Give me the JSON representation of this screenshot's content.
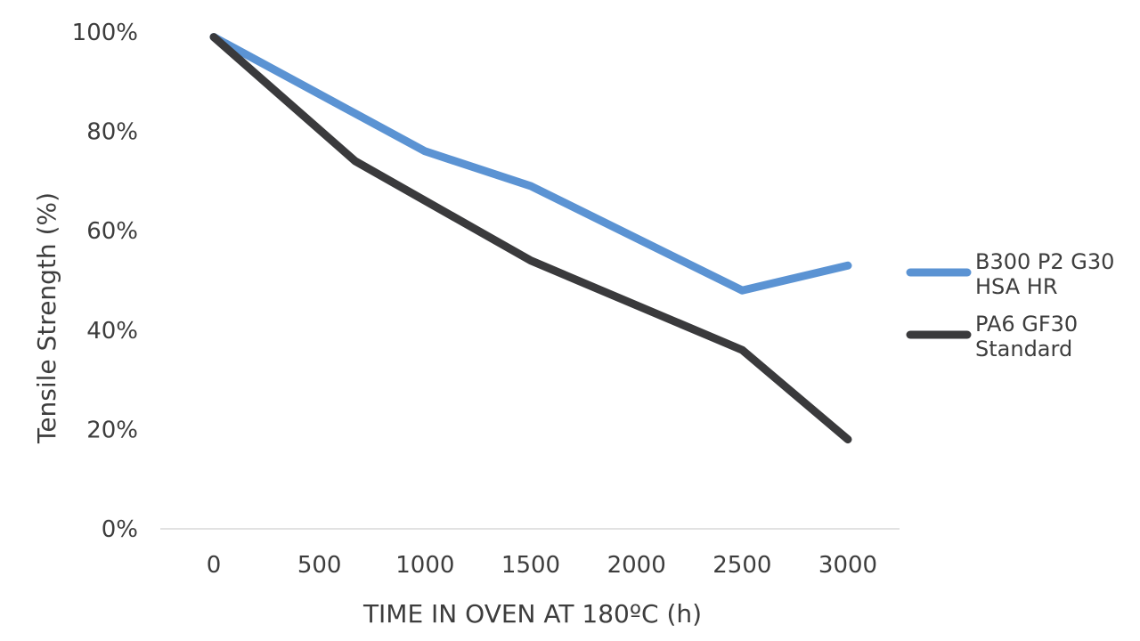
{
  "chart_data": {
    "type": "line",
    "xlabel": "TIME IN OVEN AT 180ºC (h)",
    "ylabel": "Tensile Strength (%)",
    "x_ticks": [
      "0",
      "500",
      "1000",
      "1500",
      "2000",
      "2500",
      "3000"
    ],
    "y_ticks": [
      "0%",
      "20%",
      "40%",
      "60%",
      "80%",
      "100%"
    ],
    "xlim": [
      0,
      3000
    ],
    "ylim": [
      0,
      100
    ],
    "grid": false,
    "legend_position": "right",
    "series": [
      {
        "name": "B300 P2 G30 HSA HR",
        "name_lines": [
          "B300 P2 G30",
          "HSA HR"
        ],
        "color": "#5b93d3",
        "x": [
          0,
          1000,
          1500,
          2500,
          3000
        ],
        "y": [
          99,
          76,
          69,
          48,
          53
        ]
      },
      {
        "name": "PA6 GF30 Standard",
        "name_lines": [
          "PA6 GF30",
          "Standard"
        ],
        "color": "#3a3a3c",
        "x": [
          0,
          670,
          1500,
          2500,
          3000
        ],
        "y": [
          99,
          74,
          54,
          36,
          18
        ]
      }
    ]
  }
}
